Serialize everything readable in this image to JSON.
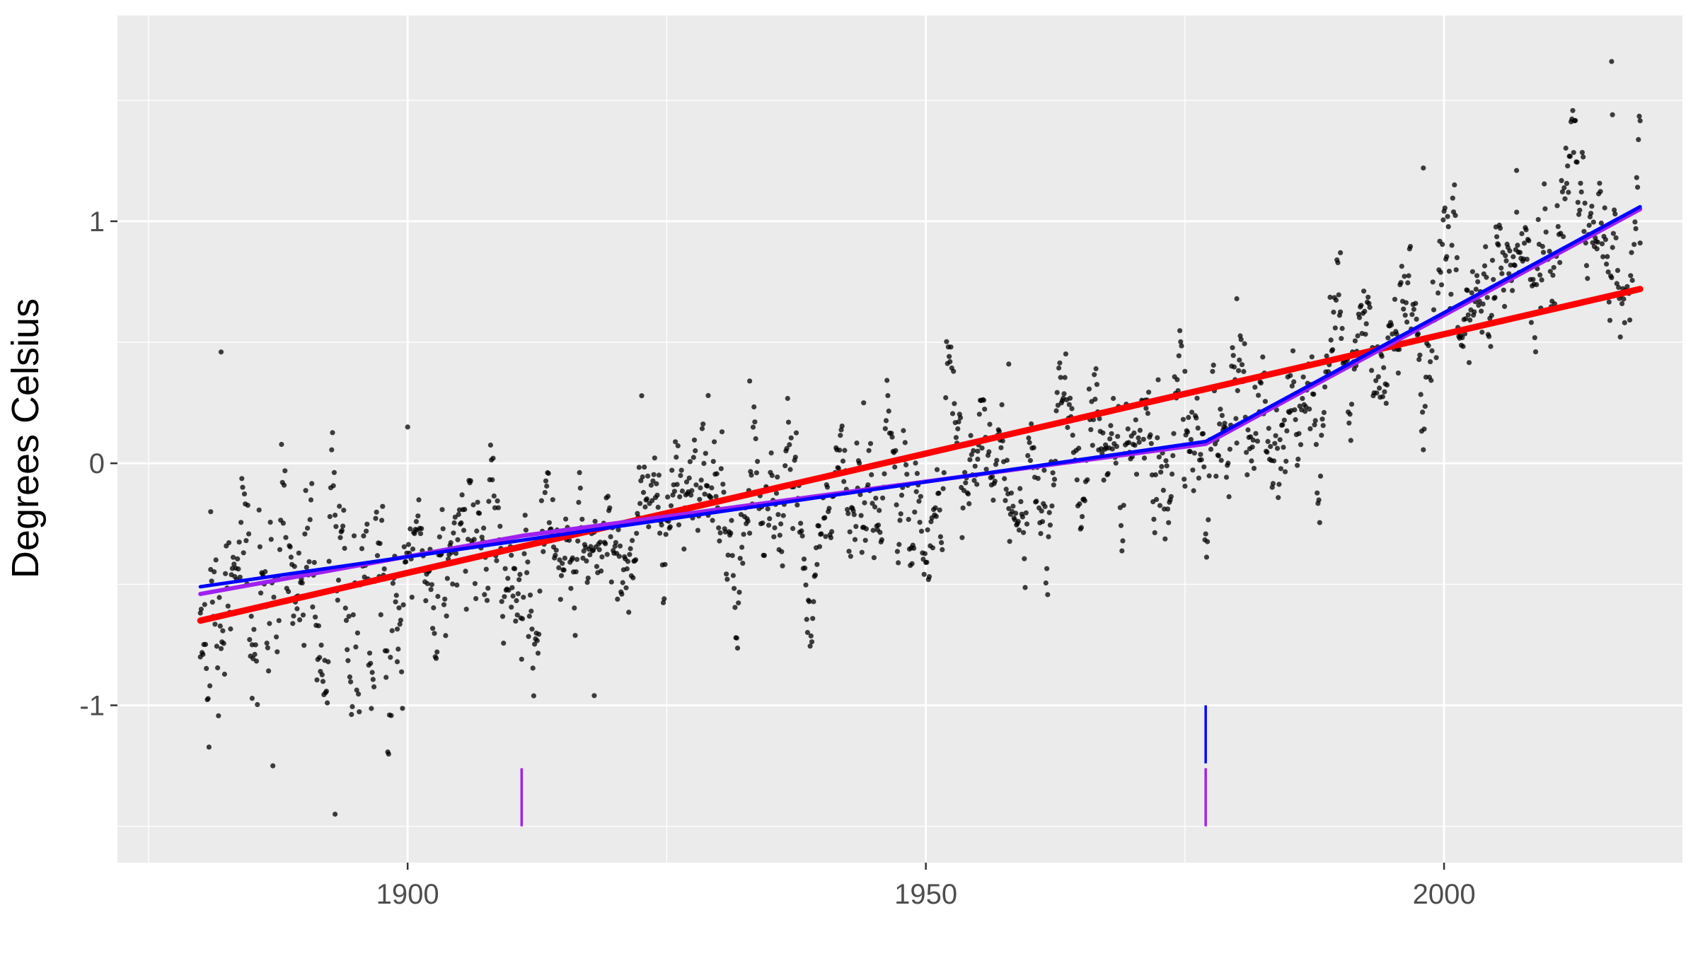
{
  "chart_data": {
    "type": "scatter",
    "title": "",
    "xlabel": "",
    "ylabel": "Degrees Celsius",
    "xlim": [
      1872,
      2023
    ],
    "ylim": [
      -1.65,
      1.85
    ],
    "grid": true,
    "background": "#ebebeb",
    "x_major_ticks": [
      1900,
      1950,
      2000
    ],
    "x_tick_labels": [
      "1900",
      "1950",
      "2000"
    ],
    "x_minor_ticks": [
      1875,
      1925,
      1975,
      2025
    ],
    "y_major_ticks": [
      -1,
      0,
      1
    ],
    "y_tick_labels": [
      "-1",
      "0",
      "1"
    ],
    "y_minor_ticks": [
      -1.5,
      -0.5,
      0.5,
      1.5
    ],
    "points": {
      "color": "#000000",
      "x_start": 1880.0,
      "x_end": 2018.92,
      "count": 1668,
      "description_note": "monthly temperature anomalies; x = decimal year, y = degrees Celsius",
      "sample": [
        [
          1880.0,
          -0.8
        ],
        [
          1881.0,
          -0.2
        ],
        [
          1882.0,
          0.46
        ],
        [
          1885.0,
          -0.75
        ],
        [
          1887.0,
          -1.25
        ],
        [
          1893.0,
          -1.45
        ],
        [
          1899.0,
          -0.82
        ],
        [
          1900.0,
          0.15
        ],
        [
          1910.0,
          -0.38
        ],
        [
          1918.0,
          -0.96
        ],
        [
          1929.0,
          0.28
        ],
        [
          1933.0,
          0.34
        ],
        [
          1944.0,
          0.25
        ],
        [
          1955.0,
          0.05
        ],
        [
          1958.0,
          0.41
        ],
        [
          1975.0,
          0.38
        ],
        [
          1980.0,
          0.68
        ],
        [
          1990.0,
          0.87
        ],
        [
          1998.0,
          1.22
        ],
        [
          2007.0,
          1.21
        ],
        [
          2016.17,
          1.66
        ],
        [
          2016.25,
          1.44
        ],
        [
          2018.92,
          0.91
        ]
      ]
    },
    "series": [
      {
        "name": "",
        "color": "#ff0000",
        "x": [
          1880.0,
          2018.92
        ],
        "y": [
          -0.65,
          0.72
        ]
      },
      {
        "name": "",
        "color": "#a020f0",
        "x": [
          1880.0,
          1911.0,
          1977.0,
          2018.92
        ],
        "y": [
          -0.54,
          -0.3,
          0.08,
          1.05
        ]
      },
      {
        "name": "",
        "color": "#0000ff",
        "x": [
          1880.0,
          1977.0,
          2018.92
        ],
        "y": [
          -0.51,
          0.09,
          1.06
        ]
      }
    ],
    "breakpoint_markers": [
      {
        "color": "#0000ff",
        "x": 1977.0,
        "y": [
          -1.24,
          -1.0
        ]
      },
      {
        "color": "#a020f0",
        "x": 1911.0,
        "y": [
          -1.5,
          -1.26
        ]
      },
      {
        "color": "#a020f0",
        "x": 1977.0,
        "y": [
          -1.5,
          -1.26
        ]
      }
    ]
  }
}
